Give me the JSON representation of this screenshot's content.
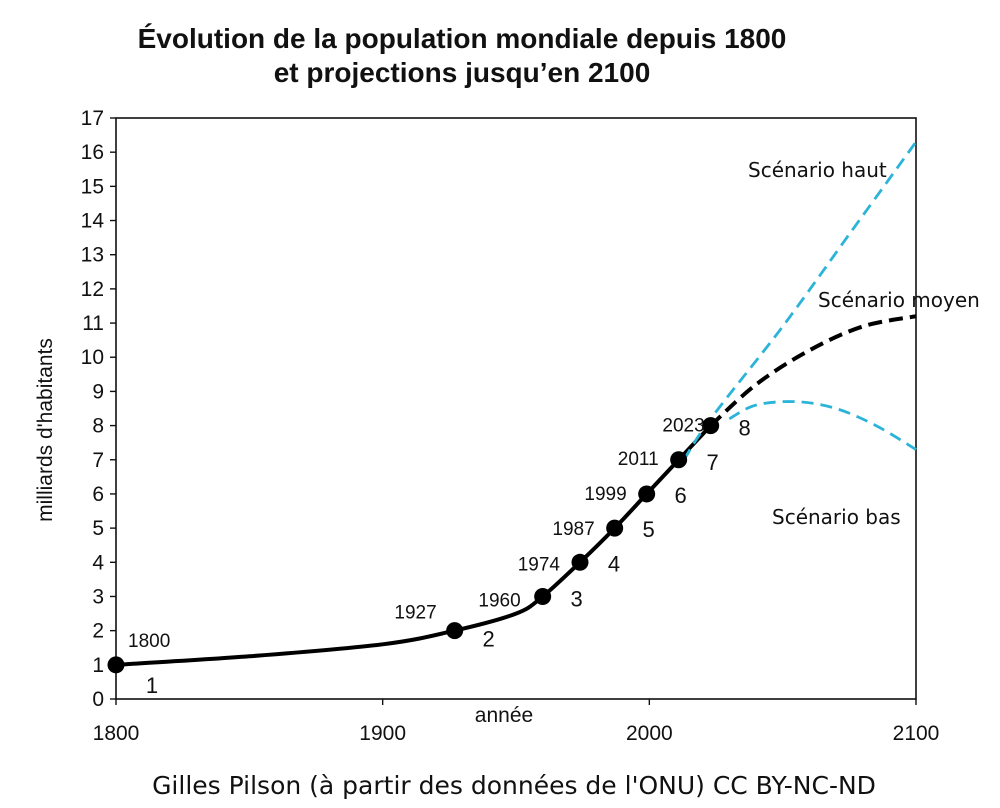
{
  "chart_data": {
    "type": "line",
    "title": [
      "Évolution de la population mondiale depuis 1800",
      "et projections jusqu’en 2100"
    ],
    "xlabel": "année",
    "ylabel": "milliards d'habitants",
    "xlim": [
      1800,
      2100
    ],
    "ylim": [
      0,
      17
    ],
    "x_ticks": [
      1800,
      1900,
      2000,
      2100
    ],
    "y_ticks": [
      0,
      1,
      2,
      3,
      4,
      5,
      6,
      7,
      8,
      9,
      10,
      11,
      12,
      13,
      14,
      15,
      16,
      17
    ],
    "grid": false,
    "milestones": [
      {
        "year": 1800,
        "value": 1,
        "year_label": "1800",
        "number_label": "1"
      },
      {
        "year": 1927,
        "value": 2,
        "year_label": "1927",
        "number_label": "2"
      },
      {
        "year": 1960,
        "value": 3,
        "year_label": "1960",
        "number_label": "3"
      },
      {
        "year": 1974,
        "value": 4,
        "year_label": "1974",
        "number_label": "4"
      },
      {
        "year": 1987,
        "value": 5,
        "year_label": "1987",
        "number_label": "5"
      },
      {
        "year": 1999,
        "value": 6,
        "year_label": "1999",
        "number_label": "6"
      },
      {
        "year": 2011,
        "value": 7,
        "year_label": "2011",
        "number_label": "7"
      },
      {
        "year": 2023,
        "value": 8,
        "year_label": "2023",
        "number_label": "8"
      }
    ],
    "series": [
      {
        "style": "solid",
        "color": "#000000",
        "x": [
          1800,
          1850,
          1900,
          1927,
          1950,
          1960,
          1974,
          1987,
          1999,
          2011,
          2023
        ],
        "y": [
          1.0,
          1.25,
          1.6,
          2.0,
          2.5,
          3.0,
          4.0,
          5.0,
          6.0,
          7.0,
          8.0
        ]
      },
      {
        "name": "Scénario haut",
        "style": "dashed",
        "color": "#2cb4d8",
        "x": [
          2013,
          2023,
          2050,
          2075,
          2100
        ],
        "y": [
          7.0,
          8.2,
          10.9,
          13.6,
          16.3
        ]
      },
      {
        "name": "Scénario moyen",
        "style": "dashed",
        "color": "#000000",
        "x": [
          2023,
          2040,
          2060,
          2080,
          2100
        ],
        "y": [
          8.0,
          9.2,
          10.2,
          10.9,
          11.2
        ]
      },
      {
        "name": "Scénario bas",
        "style": "dashed",
        "color": "#2cb4d8",
        "x": [
          2030,
          2040,
          2055,
          2070,
          2085,
          2100
        ],
        "y": [
          8.2,
          8.6,
          8.7,
          8.5,
          8.0,
          7.3
        ]
      }
    ],
    "scenario_labels": [
      "Scénario haut",
      "Scénario moyen",
      "Scénario bas"
    ],
    "colors": {
      "axis": "#111111",
      "main_line": "#000000",
      "high_low": "#2cb4d8",
      "medium": "#000000",
      "marker": "#000000"
    }
  },
  "credit": "Gilles Pilson (à partir des données de l'ONU)  CC BY-NC-ND"
}
